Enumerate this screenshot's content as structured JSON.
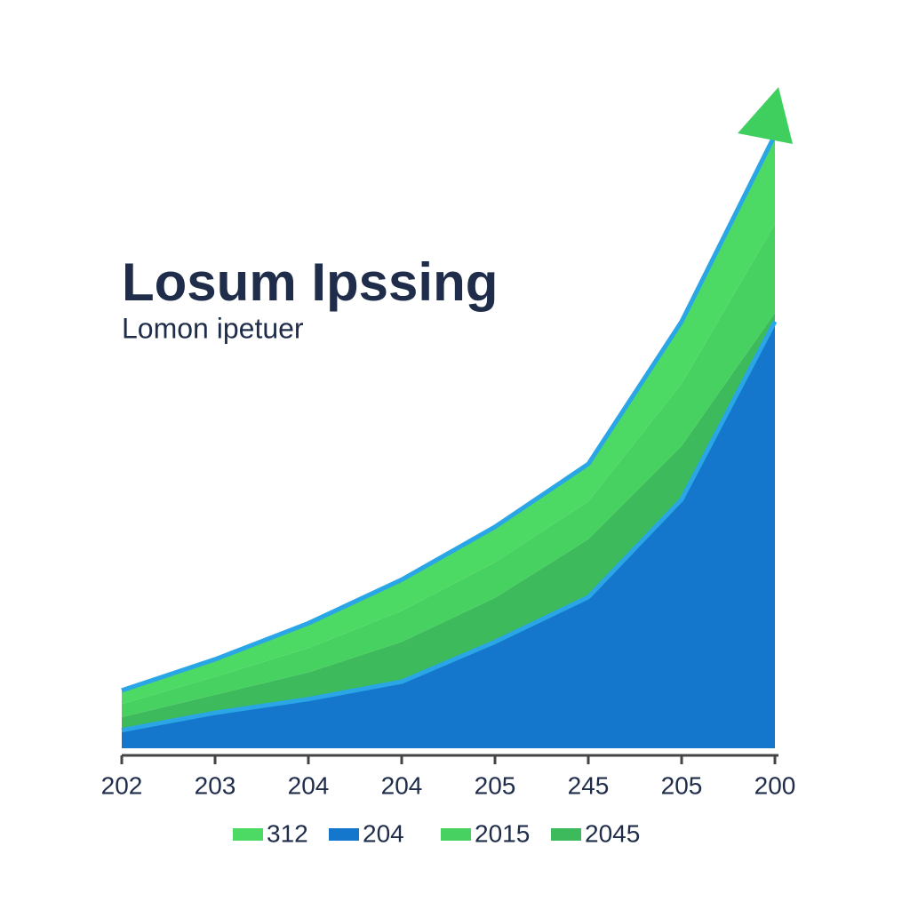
{
  "chart_data": {
    "type": "stacked-area",
    "title": "Losum Ipssing",
    "subtitle": "Lomon ipetuer",
    "categories": [
      "202",
      "203",
      "204",
      "204",
      "205",
      "245",
      "205",
      "200"
    ],
    "series": [
      {
        "name": "312",
        "color": "#4cd964",
        "values": [
          2.2,
          2.8,
          4,
          5,
          5.7,
          6,
          10,
          14.3
        ]
      },
      {
        "name": "204",
        "color": "#1577cc",
        "values": [
          2.9,
          5.7,
          7.9,
          10.7,
          17.1,
          24.3,
          40,
          68.6
        ]
      },
      {
        "name": "2015",
        "color": "#47d160",
        "values": [
          2.1,
          2.9,
          3.9,
          5,
          5.7,
          6.1,
          10,
          14.3
        ]
      },
      {
        "name": "2045",
        "color": "#3dbb5c",
        "values": [
          2.1,
          2.9,
          4.3,
          6.4,
          7.1,
          9.3,
          8.6,
          1.4
        ]
      }
    ],
    "ylim": [
      0,
      100
    ]
  }
}
